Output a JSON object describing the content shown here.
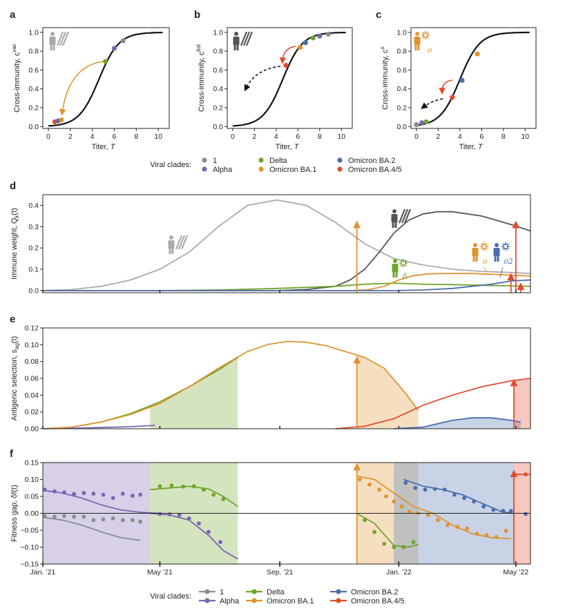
{
  "colors": {
    "clade_1": "#8c8c8c",
    "alpha": "#7a65b2",
    "delta": "#6fa52b",
    "ba1": "#e0922f",
    "ba2": "#4a6ead",
    "ba45": "#e24a2e",
    "curve": "#111111",
    "vac_weight": "#aaaaaa",
    "bst_weight": "#555555"
  },
  "legend": {
    "title": "Viral clades:",
    "items": [
      {
        "key": "clade_1",
        "label": "1"
      },
      {
        "key": "alpha",
        "label": "Alpha"
      },
      {
        "key": "delta",
        "label": "Delta"
      },
      {
        "key": "ba1",
        "label": "Omicron BA.1"
      },
      {
        "key": "ba2",
        "label": "Omicron BA.2"
      },
      {
        "key": "ba45",
        "label": "Omicron BA.4/5"
      }
    ]
  },
  "chart_data": [
    {
      "panel": "a",
      "type": "line",
      "xlabel": "Titer, T",
      "ylabel": "Cross-immunity, c^vac",
      "ylabel_main": "Cross-immunity, c",
      "ylabel_sup": "vac",
      "xlim": [
        -0.5,
        11
      ],
      "ylim": [
        -0.02,
        1.05
      ],
      "xticks": [
        "0",
        "2",
        "4",
        "6",
        "8",
        "10"
      ],
      "yticks": [
        "0.0",
        "0.2",
        "0.4",
        "0.6",
        "0.8",
        "1.0"
      ],
      "curve_midpoint": 4.6,
      "points": [
        {
          "clade": "ba45",
          "x": 0.6,
          "y": 0.05
        },
        {
          "clade": "ba2",
          "x": 0.9,
          "y": 0.06
        },
        {
          "clade": "ba1",
          "x": 1.2,
          "y": 0.07
        },
        {
          "clade": "delta",
          "x": 5.2,
          "y": 0.69
        },
        {
          "clade": "alpha",
          "x": 6.0,
          "y": 0.83
        },
        {
          "clade": "clade_1",
          "x": 6.8,
          "y": 0.91
        }
      ]
    },
    {
      "panel": "b",
      "type": "line",
      "xlabel": "Titer, T",
      "ylabel": "Cross-immunity, c^bst",
      "ylabel_main": "Cross-immunity, c",
      "ylabel_sup": "bst",
      "xlim": [
        -0.5,
        11
      ],
      "ylim": [
        -0.02,
        1.05
      ],
      "xticks": [
        "0",
        "2",
        "4",
        "6",
        "8",
        "10"
      ],
      "yticks": [
        "0.0",
        "0.2",
        "0.4",
        "0.6",
        "0.8",
        "1.0"
      ],
      "curve_midpoint": 4.6,
      "points": [
        {
          "clade": "ba45",
          "x": 4.9,
          "y": 0.65
        },
        {
          "clade": "ba1",
          "x": 6.2,
          "y": 0.84
        },
        {
          "clade": "ba2",
          "x": 6.7,
          "y": 0.89
        },
        {
          "clade": "delta",
          "x": 7.4,
          "y": 0.94
        },
        {
          "clade": "alpha",
          "x": 8.0,
          "y": 0.96
        },
        {
          "clade": "clade_1",
          "x": 8.8,
          "y": 0.98
        }
      ]
    },
    {
      "panel": "c",
      "type": "line",
      "xlabel": "Titer, T",
      "ylabel": "Cross-immunity, c^o",
      "ylabel_main": "Cross-immunity, c",
      "ylabel_sup": "o",
      "xlim": [
        -0.5,
        11
      ],
      "ylim": [
        -0.02,
        1.05
      ],
      "xticks": [
        "0",
        "2",
        "4",
        "6",
        "8",
        "10"
      ],
      "yticks": [
        "0.0",
        "0.2",
        "0.4",
        "0.6",
        "0.8",
        "1.0"
      ],
      "curve_midpoint": 4.0,
      "points": [
        {
          "clade": "clade_1",
          "x": 0.0,
          "y": 0.02
        },
        {
          "clade": "alpha",
          "x": 0.5,
          "y": 0.04
        },
        {
          "clade": "delta",
          "x": 0.9,
          "y": 0.05
        },
        {
          "clade": "ba45",
          "x": 3.3,
          "y": 0.31
        },
        {
          "clade": "ba2",
          "x": 4.2,
          "y": 0.49
        },
        {
          "clade": "ba1",
          "x": 5.6,
          "y": 0.77
        }
      ]
    },
    {
      "panel": "d",
      "type": "line",
      "ylabel": "Immune weight, Q_k(t)",
      "ylabel_main": "Immune weight, Q",
      "ylabel_sub": "k",
      "ylabel_tail": "(t)",
      "x_domain": [
        "2021-01-01",
        "2022-05-15"
      ],
      "ylim": [
        -0.01,
        0.45
      ],
      "yticks": [
        "0.0",
        "0.1",
        "0.2",
        "0.3",
        "0.4"
      ],
      "series_labels": {
        "bst_wave": "δ",
        "ba1_label": "o",
        "ba2_label": "o2"
      },
      "series": [
        {
          "key": "vac_weight",
          "x": [
            0,
            30,
            60,
            90,
            120,
            150,
            180,
            210,
            240,
            270,
            300,
            330,
            360,
            390,
            420,
            450,
            480,
            500
          ],
          "y": [
            0,
            0.005,
            0.02,
            0.05,
            0.1,
            0.18,
            0.3,
            0.4,
            0.425,
            0.4,
            0.32,
            0.22,
            0.15,
            0.12,
            0.1,
            0.09,
            0.085,
            0.08
          ]
        },
        {
          "key": "bst_weight",
          "x": [
            0,
            240,
            270,
            300,
            315,
            330,
            345,
            360,
            375,
            390,
            405,
            420,
            450,
            480,
            500
          ],
          "y": [
            0,
            0,
            0.005,
            0.02,
            0.05,
            0.1,
            0.18,
            0.27,
            0.33,
            0.36,
            0.37,
            0.37,
            0.35,
            0.31,
            0.28
          ]
        },
        {
          "key": "delta",
          "x": [
            0,
            120,
            180,
            240,
            300,
            330,
            360,
            390,
            420,
            450,
            480,
            500
          ],
          "y": [
            0,
            0,
            0.003,
            0.01,
            0.02,
            0.03,
            0.035,
            0.03,
            0.028,
            0.025,
            0.022,
            0.02
          ]
        },
        {
          "key": "ba1",
          "x": [
            0,
            320,
            335,
            350,
            365,
            380,
            395,
            410,
            440,
            470,
            500
          ],
          "y": [
            0,
            0,
            0.005,
            0.02,
            0.05,
            0.07,
            0.078,
            0.08,
            0.08,
            0.075,
            0.068
          ]
        },
        {
          "key": "ba2",
          "x": [
            0,
            360,
            390,
            420,
            440,
            460,
            480,
            500
          ],
          "y": [
            0,
            0,
            0.003,
            0.01,
            0.02,
            0.03,
            0.045,
            0.05
          ]
        }
      ],
      "arrows": [
        {
          "clade": "ba1",
          "x": 322,
          "y_top": 0.33
        },
        {
          "clade": "ba45",
          "x": 480,
          "y_top": 0.085
        },
        {
          "clade": "ba45",
          "x": 485,
          "y_top": 0.33
        },
        {
          "clade": "ba45",
          "x": 490,
          "y_top": 0.04
        }
      ]
    },
    {
      "panel": "e",
      "type": "area",
      "ylabel": "Antigenic selection, s_ag(t)",
      "ylabel_main": "Antigenic selection, s",
      "ylabel_sub": "ag",
      "ylabel_tail": "(t)",
      "x_domain": [
        "2021-01-01",
        "2022-05-15"
      ],
      "ylim": [
        0,
        0.12
      ],
      "yticks": [
        "0.00",
        "0.02",
        "0.04",
        "0.06",
        "0.08",
        "0.10",
        "0.12"
      ],
      "series": [
        {
          "key": "alpha",
          "x": [
            0,
            30,
            60,
            90,
            115
          ],
          "y": [
            0,
            0.0005,
            0.0015,
            0.0025,
            0.004
          ]
        },
        {
          "key": "delta",
          "x": [
            0,
            30,
            60,
            90,
            120,
            150,
            180,
            200
          ],
          "y": [
            0,
            0.002,
            0.008,
            0.018,
            0.032,
            0.05,
            0.07,
            0.085
          ]
        },
        {
          "key": "ba1",
          "x": [
            0,
            30,
            60,
            90,
            120,
            150,
            180,
            210,
            230,
            250,
            270,
            290,
            310,
            330,
            350,
            370,
            385
          ],
          "y": [
            0,
            0.002,
            0.008,
            0.017,
            0.03,
            0.05,
            0.072,
            0.092,
            0.1,
            0.104,
            0.103,
            0.099,
            0.092,
            0.085,
            0.072,
            0.045,
            0.022
          ]
        },
        {
          "key": "ba45",
          "x": [
            300,
            330,
            360,
            390,
            420,
            450,
            480,
            500
          ],
          "y": [
            0,
            0.003,
            0.012,
            0.028,
            0.04,
            0.05,
            0.057,
            0.06
          ]
        },
        {
          "key": "ba2",
          "x": [
            360,
            390,
            420,
            440,
            460,
            480,
            490
          ],
          "y": [
            0,
            0.002,
            0.01,
            0.013,
            0.013,
            0.01,
            0.008
          ]
        }
      ],
      "shaded": [
        {
          "clade": "delta",
          "x_from": 110,
          "x_to": 200
        },
        {
          "clade": "ba1",
          "x_from": 322,
          "x_to": 385
        },
        {
          "clade": "ba2",
          "x_from": 360,
          "x_to": 490
        },
        {
          "clade": "ba45",
          "x_from": 483,
          "x_to": 500
        }
      ],
      "arrows": [
        {
          "clade": "ba1",
          "x": 322,
          "y_top": 0.087
        },
        {
          "clade": "ba45",
          "x": 483,
          "y_top": 0.06
        }
      ]
    },
    {
      "panel": "f",
      "type": "scatter",
      "ylabel": "Fitness gap, δf(t)",
      "x_domain": [
        "2021-01-01",
        "2022-05-15"
      ],
      "xticks": [
        "Jan. ’21",
        "May ’21",
        "Sep. ’21",
        "Jan. ’22",
        "May ’22"
      ],
      "ylim": [
        -0.15,
        0.15
      ],
      "yticks": [
        "−0.15",
        "−0.10",
        "−0.05",
        "0.00",
        "0.05",
        "0.10",
        "0.15"
      ],
      "shaded": [
        {
          "clade": "alpha",
          "x_from": 0,
          "x_to": 110
        },
        {
          "clade": "delta",
          "x_from": 110,
          "x_to": 200
        },
        {
          "clade": "ba1",
          "x_from": 322,
          "x_to": 360
        },
        {
          "clade": "clade_1",
          "x_from": 360,
          "x_to": 385
        },
        {
          "clade": "ba2",
          "x_from": 385,
          "x_to": 483
        },
        {
          "clade": "ba45",
          "x_from": 483,
          "x_to": 500
        }
      ],
      "lines": [
        {
          "key": "alpha",
          "x": [
            0,
            20,
            40,
            60,
            80,
            100,
            120
          ],
          "y": [
            0.068,
            0.06,
            0.045,
            0.025,
            0.01,
            0.003,
            0.0
          ]
        },
        {
          "key": "clade_1",
          "x": [
            0,
            20,
            40,
            60,
            80,
            100
          ],
          "y": [
            -0.012,
            -0.02,
            -0.035,
            -0.055,
            -0.072,
            -0.08
          ]
        },
        {
          "key": "delta",
          "x": [
            110,
            130,
            150,
            170,
            185,
            200
          ],
          "y": [
            0.07,
            0.075,
            0.08,
            0.072,
            0.05,
            0.02
          ]
        },
        {
          "key": "alpha",
          "x": [
            110,
            130,
            150,
            170,
            185,
            200
          ],
          "y": [
            0,
            -0.005,
            -0.02,
            -0.065,
            -0.11,
            -0.135
          ]
        },
        {
          "key": "ba1",
          "x": [
            322,
            340,
            360,
            380,
            400,
            420,
            440,
            460,
            480
          ],
          "y": [
            0.11,
            0.1,
            0.06,
            0.02,
            0,
            -0.035,
            -0.06,
            -0.072,
            -0.075
          ]
        },
        {
          "key": "delta",
          "x": [
            322,
            340,
            360,
            375,
            385
          ],
          "y": [
            0,
            -0.03,
            -0.095,
            -0.1,
            -0.092
          ]
        },
        {
          "key": "ba2",
          "x": [
            370,
            390,
            410,
            430,
            450,
            470,
            483
          ],
          "y": [
            0.1,
            0.08,
            0.07,
            0.055,
            0.03,
            0.005,
            0
          ]
        },
        {
          "key": "ba45",
          "x": [
            483,
            500
          ],
          "y": [
            0.115,
            0.115
          ]
        }
      ],
      "points": [
        {
          "key": "alpha",
          "x": [
            2,
            12,
            22,
            32,
            42,
            52,
            62,
            72,
            82,
            92,
            100
          ],
          "y": [
            0.07,
            0.065,
            0.062,
            0.057,
            0.06,
            0.058,
            0.055,
            0.045,
            0.058,
            0.052,
            0.055
          ]
        },
        {
          "key": "clade_1",
          "x": [
            2,
            12,
            22,
            32,
            42,
            52,
            62,
            72,
            82,
            92,
            100
          ],
          "y": [
            -0.008,
            -0.01,
            -0.008,
            -0.01,
            -0.01,
            -0.02,
            -0.018,
            -0.015,
            -0.02,
            -0.02,
            -0.025
          ]
        },
        {
          "key": "delta",
          "x": [
            120,
            132,
            144,
            155,
            165,
            175,
            185
          ],
          "y": [
            0.08,
            0.082,
            0.079,
            0.08,
            0.07,
            0.055,
            0.042
          ]
        },
        {
          "key": "alpha",
          "x": [
            120,
            130,
            140,
            150,
            160,
            170,
            182
          ],
          "y": [
            -0.002,
            -0.003,
            -0.005,
            -0.015,
            -0.03,
            -0.055,
            -0.085
          ]
        },
        {
          "key": "ba1",
          "x": [
            325,
            335,
            345,
            352,
            360,
            368,
            376,
            385,
            395,
            405,
            415,
            425,
            435,
            445,
            455,
            465,
            475
          ],
          "y": [
            0.1,
            0.085,
            0.07,
            0.05,
            0.035,
            0.02,
            0.005,
            0,
            -0.005,
            -0.02,
            -0.035,
            -0.04,
            -0.045,
            -0.06,
            -0.065,
            -0.07,
            -0.052
          ]
        },
        {
          "key": "delta",
          "x": [
            330,
            340,
            350,
            360,
            370,
            380
          ],
          "y": [
            -0.02,
            -0.055,
            -0.09,
            -0.1,
            -0.1,
            -0.085
          ]
        },
        {
          "key": "ba2",
          "x": [
            372,
            382,
            392,
            402,
            412,
            422,
            432,
            442,
            452,
            462,
            472,
            480
          ],
          "y": [
            0.09,
            0.075,
            0.07,
            0.072,
            0.07,
            0.055,
            0.045,
            0.035,
            0.02,
            0.01,
            0.007,
            0.007
          ]
        },
        {
          "key": "ba45",
          "x": [
            495
          ],
          "y": [
            0.115
          ]
        },
        {
          "key": "ba2",
          "x": [
            495
          ],
          "y": [
            -0.002
          ]
        }
      ],
      "arrows": [
        {
          "clade": "ba1",
          "x": 322,
          "y_top": 0.15
        },
        {
          "clade": "ba45",
          "x": 483,
          "y_top": 0.13
        }
      ]
    }
  ]
}
